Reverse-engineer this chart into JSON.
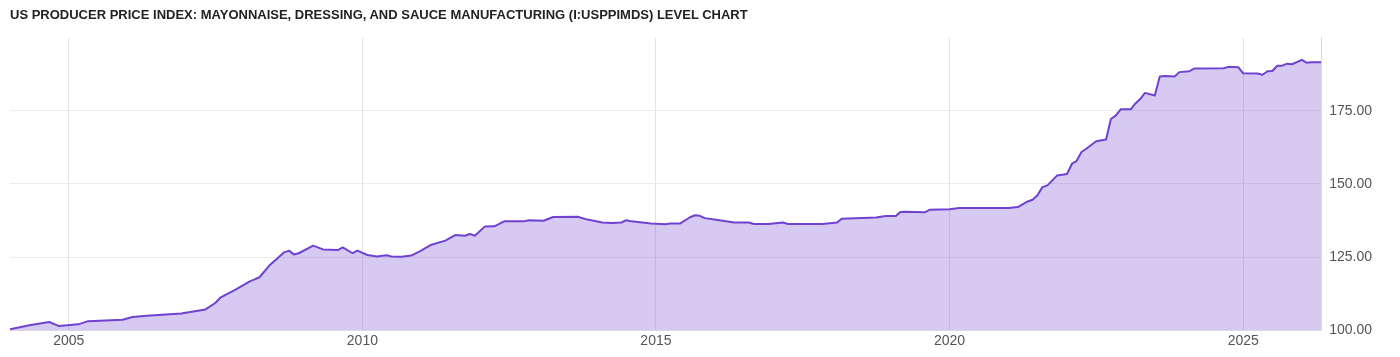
{
  "chart_data": {
    "type": "area",
    "title": "US PRODUCER PRICE INDEX: MAYONNAISE, DRESSING, AND SAUCE MANUFACTURING (I:USPPIMDS) LEVEL CHART",
    "x": [
      "2004-01",
      "2004-05",
      "2004-09",
      "2004-11",
      "2005-03",
      "2005-05",
      "2005-12",
      "2006-02",
      "2006-05",
      "2006-12",
      "2007-05",
      "2007-07",
      "2007-08",
      "2007-11",
      "2008-02",
      "2008-04",
      "2008-06",
      "2008-09",
      "2008-10",
      "2008-11",
      "2008-12",
      "2009-03",
      "2009-05",
      "2009-08",
      "2009-09",
      "2009-11",
      "2009-12",
      "2010-02",
      "2010-04",
      "2010-06",
      "2010-07",
      "2010-09",
      "2010-11",
      "2011-01",
      "2011-03",
      "2011-06",
      "2011-08",
      "2011-10",
      "2011-11",
      "2011-12",
      "2012-02",
      "2012-04",
      "2012-06",
      "2012-10",
      "2012-11",
      "2013-02",
      "2013-04",
      "2013-09",
      "2013-11",
      "2014-02",
      "2014-04",
      "2014-06",
      "2014-07",
      "2014-08",
      "2014-12",
      "2015-03",
      "2015-04",
      "2015-06",
      "2015-08",
      "2015-09",
      "2015-10",
      "2015-11",
      "2016-02",
      "2016-05",
      "2016-08",
      "2016-09",
      "2016-12",
      "2017-03",
      "2017-04",
      "2017-11",
      "2018-02",
      "2018-03",
      "2018-10",
      "2018-12",
      "2019-02",
      "2019-03",
      "2019-04",
      "2019-08",
      "2019-09",
      "2020-01",
      "2020-03",
      "2021-01",
      "2021-03",
      "2021-05",
      "2021-06",
      "2021-07",
      "2021-08",
      "2021-09",
      "2021-11",
      "2022-01",
      "2022-02",
      "2022-03",
      "2022-04",
      "2022-05",
      "2022-07",
      "2022-09",
      "2022-10",
      "2022-11",
      "2022-12",
      "2023-02",
      "2023-03",
      "2023-04",
      "2023-05",
      "2023-07",
      "2023-08",
      "2023-09",
      "2023-11",
      "2023-12",
      "2024-02",
      "2024-03",
      "2024-09",
      "2024-10",
      "2024-12",
      "2025-01",
      "2025-04",
      "2025-05",
      "2025-06",
      "2025-07",
      "2025-08",
      "2025-09",
      "2025-10",
      "2025-11",
      "2026-01",
      "2026-02",
      "2026-03",
      "2026-05"
    ],
    "series": [
      {
        "color": "#6f42d0",
        "values": [
          100.3,
          101.7,
          102.8,
          101.4,
          102.0,
          103.1,
          103.6,
          104.5,
          104.9,
          105.7,
          107.1,
          109.3,
          111.1,
          113.8,
          116.7,
          118.1,
          122.1,
          126.6,
          127.2,
          125.9,
          126.3,
          128.9,
          127.6,
          127.4,
          128.3,
          126.3,
          127.2,
          125.7,
          125.2,
          125.6,
          125.2,
          125.1,
          125.5,
          127.2,
          129.1,
          130.6,
          132.5,
          132.3,
          132.9,
          132.3,
          135.4,
          135.5,
          137.2,
          137.2,
          137.6,
          137.4,
          138.7,
          138.8,
          137.8,
          136.8,
          136.6,
          136.8,
          137.6,
          137.2,
          136.5,
          136.2,
          136.5,
          136.5,
          138.6,
          139.3,
          139.1,
          138.3,
          137.6,
          136.8,
          136.8,
          136.3,
          136.3,
          136.8,
          136.3,
          136.3,
          136.8,
          138.1,
          138.5,
          139.0,
          139.0,
          140.4,
          140.5,
          140.3,
          141.2,
          141.3,
          141.8,
          141.8,
          142.1,
          144.0,
          144.6,
          146.1,
          148.9,
          149.5,
          152.9,
          153.4,
          156.9,
          157.8,
          160.9,
          162.0,
          164.6,
          165.2,
          172.2,
          173.4,
          175.5,
          175.5,
          177.4,
          179.0,
          181.1,
          180.2,
          186.7,
          186.9,
          186.7,
          188.2,
          188.5,
          189.4,
          189.5,
          190.0,
          189.9,
          187.8,
          187.7,
          187.3,
          188.5,
          188.6,
          190.4,
          190.4,
          191.1,
          190.9,
          192.4,
          191.4,
          191.6,
          191.6
        ]
      }
    ],
    "xlim": [
      "2004-01",
      "2026-05"
    ],
    "xticks": [
      "2005",
      "2010",
      "2015",
      "2020",
      "2025"
    ],
    "ylim": [
      100,
      200
    ],
    "yticks": [
      {
        "value": 100,
        "label": "100.00"
      },
      {
        "value": 125,
        "label": "125.00"
      },
      {
        "value": 150,
        "label": "150.00"
      },
      {
        "value": 175,
        "label": "175.00"
      }
    ],
    "grid": true,
    "legend": false
  }
}
